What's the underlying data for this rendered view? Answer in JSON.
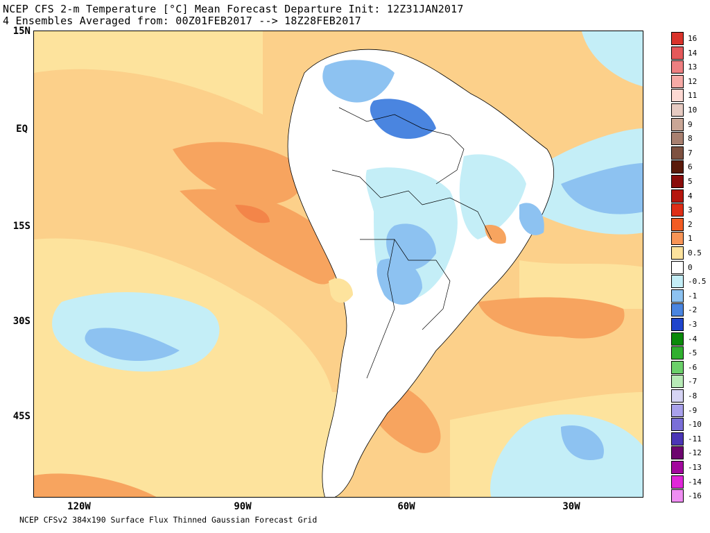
{
  "title": {
    "line1": "NCEP CFS 2-m Temperature [°C] Mean Forecast Departure Init: 12Z31JAN2017",
    "line2": "4 Ensembles Averaged from: 00Z01FEB2017 --> 18Z28FEB2017"
  },
  "footer": "NCEP CFSv2 384x190 Surface Flux Thinned Gaussian Forecast Grid",
  "axes": {
    "lat_labels": [
      "15N",
      "EQ",
      "15S",
      "30S",
      "45S"
    ],
    "lon_labels": [
      "120W",
      "90W",
      "60W",
      "30W"
    ]
  },
  "legend": {
    "labels": [
      "16",
      "14",
      "13",
      "12",
      "11",
      "10",
      "9",
      "8",
      "7",
      "6",
      "5",
      "4",
      "3",
      "2",
      "1",
      "0.5",
      "0",
      "-0.5",
      "-1",
      "-2",
      "-3",
      "-4",
      "-5",
      "-6",
      "-7",
      "-8",
      "-9",
      "-10",
      "-11",
      "-12",
      "-13",
      "-14",
      "-16"
    ],
    "colors": [
      "#d9332b",
      "#e5585a",
      "#ee7f81",
      "#f6aaa6",
      "#fdd9d3",
      "#e7cbc2",
      "#c9a696",
      "#a88070",
      "#7e5140",
      "#5a1a0a",
      "#8a0d0b",
      "#b5170f",
      "#de2e16",
      "#f25c23",
      "#f89456",
      "#fde39d",
      "#ffffff",
      "#c4eef7",
      "#8dc2f1",
      "#4a85e0",
      "#1f44cc",
      "#0a8a0a",
      "#30b02f",
      "#6bd06a",
      "#b8ebb7",
      "#d6d4f4",
      "#a9a1ec",
      "#7a6ed7",
      "#4b36b6",
      "#6d056f",
      "#a2089d",
      "#e026d9",
      "#ef8ef2"
    ]
  },
  "map": {
    "ocean_base_color": "#fcd08a",
    "land_color": "#ffffff"
  }
}
